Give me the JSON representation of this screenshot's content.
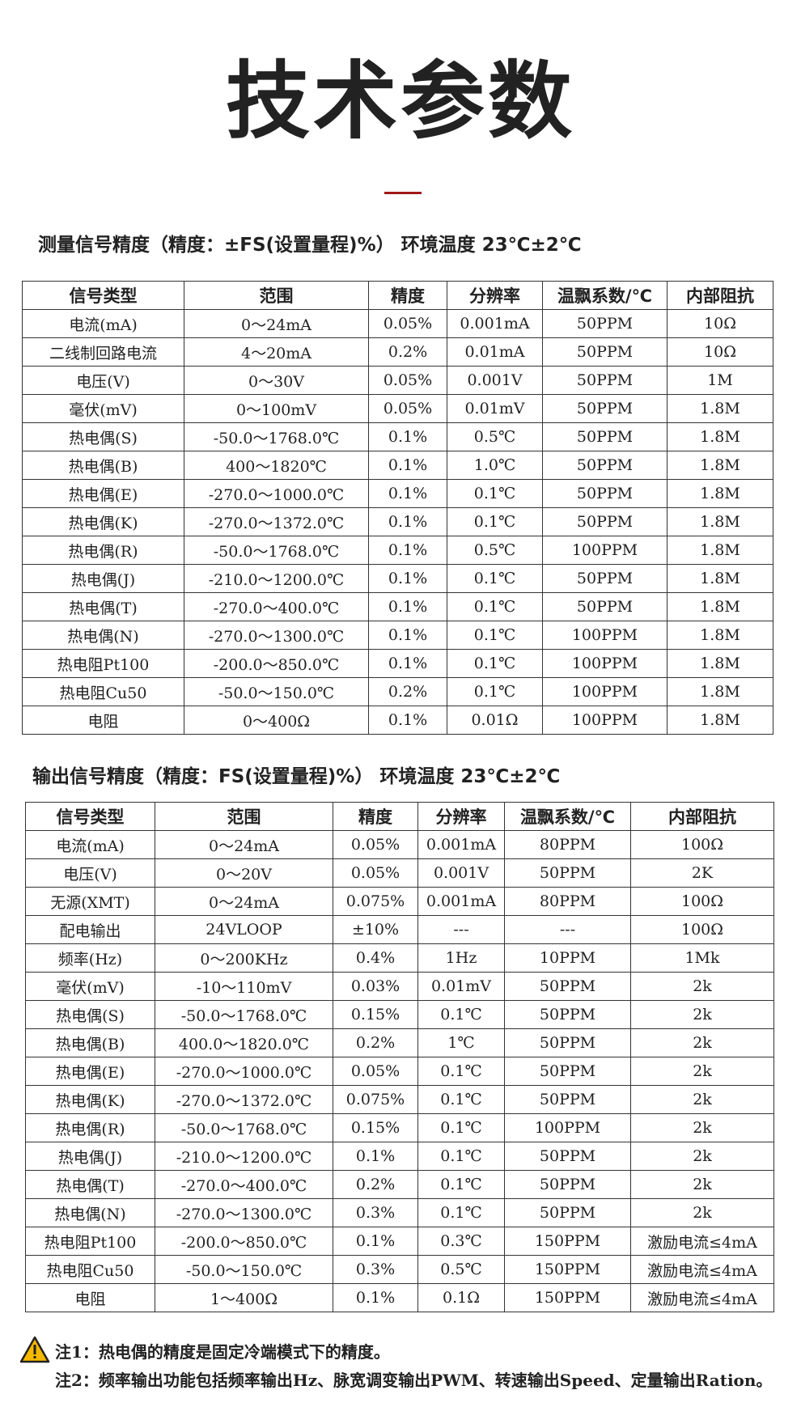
{
  "header": {
    "title": "技术参数"
  },
  "section1": {
    "heading": "测量信号精度（精度：±FS(设置量程)%） 环境温度 23℃±2℃",
    "table": {
      "headers": [
        "信号类型",
        "范围",
        "精度",
        "分辨率",
        "温飘系数/℃",
        "内部阻抗"
      ],
      "rows": [
        [
          "电流(mA)",
          "0～24mA",
          "0.05%",
          "0.001mA",
          "50PPM",
          "10Ω"
        ],
        [
          "二线制回路电流",
          "4～20mA",
          "0.2%",
          "0.01mA",
          "50PPM",
          "10Ω"
        ],
        [
          "电压(V)",
          "0～30V",
          "0.05%",
          "0.001V",
          "50PPM",
          "1M"
        ],
        [
          "毫伏(mV)",
          "0～100mV",
          "0.05%",
          "0.01mV",
          "50PPM",
          "1.8M"
        ],
        [
          "热电偶(S)",
          "-50.0～1768.0℃",
          "0.1%",
          "0.5℃",
          "50PPM",
          "1.8M"
        ],
        [
          "热电偶(B)",
          "400～1820℃",
          "0.1%",
          "1.0℃",
          "50PPM",
          "1.8M"
        ],
        [
          "热电偶(E)",
          "-270.0～1000.0℃",
          "0.1%",
          "0.1℃",
          "50PPM",
          "1.8M"
        ],
        [
          "热电偶(K)",
          "-270.0～1372.0℃",
          "0.1%",
          "0.1℃",
          "50PPM",
          "1.8M"
        ],
        [
          "热电偶(R)",
          "-50.0～1768.0℃",
          "0.1%",
          "0.5℃",
          "100PPM",
          "1.8M"
        ],
        [
          "热电偶(J)",
          "-210.0～1200.0℃",
          "0.1%",
          "0.1℃",
          "50PPM",
          "1.8M"
        ],
        [
          "热电偶(T)",
          "-270.0～400.0℃",
          "0.1%",
          "0.1℃",
          "50PPM",
          "1.8M"
        ],
        [
          "热电偶(N)",
          "-270.0～1300.0℃",
          "0.1%",
          "0.1℃",
          "100PPM",
          "1.8M"
        ],
        [
          "热电阻Pt100",
          "-200.0～850.0℃",
          "0.1%",
          "0.1℃",
          "100PPM",
          "1.8M"
        ],
        [
          "热电阻Cu50",
          "-50.0～150.0℃",
          "0.2%",
          "0.1℃",
          "100PPM",
          "1.8M"
        ],
        [
          "电阻",
          "0～400Ω",
          "0.1%",
          "0.01Ω",
          "100PPM",
          "1.8M"
        ]
      ]
    }
  },
  "section2": {
    "heading": "输出信号精度（精度：FS(设置量程)%） 环境温度 23℃±2℃",
    "table": {
      "headers": [
        "信号类型",
        "范围",
        "精度",
        "分辨率",
        "温飘系数/℃",
        "内部阻抗"
      ],
      "rows": [
        [
          "电流(mA)",
          "0～24mA",
          "0.05%",
          "0.001mA",
          "80PPM",
          "100Ω"
        ],
        [
          "电压(V)",
          "0～20V",
          "0.05%",
          "0.001V",
          "50PPM",
          "2K"
        ],
        [
          "无源(XMT)",
          "0～24mA",
          "0.075%",
          "0.001mA",
          "80PPM",
          "100Ω"
        ],
        [
          "配电输出",
          "24VLOOP",
          "±10%",
          "---",
          "---",
          "100Ω"
        ],
        [
          "频率(Hz)",
          "0～200KHz",
          "0.4%",
          "1Hz",
          "10PPM",
          "1Mk"
        ],
        [
          "毫伏(mV)",
          "-10～110mV",
          "0.03%",
          "0.01mV",
          "50PPM",
          "2k"
        ],
        [
          "热电偶(S)",
          "-50.0～1768.0℃",
          "0.15%",
          "0.1℃",
          "50PPM",
          "2k"
        ],
        [
          "热电偶(B)",
          "400.0～1820.0℃",
          "0.2%",
          "1℃",
          "50PPM",
          "2k"
        ],
        [
          "热电偶(E)",
          "-270.0～1000.0℃",
          "0.05%",
          "0.1℃",
          "50PPM",
          "2k"
        ],
        [
          "热电偶(K)",
          "-270.0～1372.0℃",
          "0.075%",
          "0.1℃",
          "50PPM",
          "2k"
        ],
        [
          "热电偶(R)",
          "-50.0～1768.0℃",
          "0.15%",
          "0.1℃",
          "100PPM",
          "2k"
        ],
        [
          "热电偶(J)",
          "-210.0～1200.0℃",
          "0.1%",
          "0.1℃",
          "50PPM",
          "2k"
        ],
        [
          "热电偶(T)",
          "-270.0～400.0℃",
          "0.2%",
          "0.1℃",
          "50PPM",
          "2k"
        ],
        [
          "热电偶(N)",
          "-270.0～1300.0℃",
          "0.3%",
          "0.1℃",
          "50PPM",
          "2k"
        ],
        [
          "热电阻Pt100",
          "-200.0～850.0℃",
          "0.1%",
          "0.3℃",
          "150PPM",
          "激励电流≤4mA"
        ],
        [
          "热电阻Cu50",
          "-50.0～150.0℃",
          "0.3%",
          "0.5℃",
          "150PPM",
          "激励电流≤4mA"
        ],
        [
          "电阻",
          "1～400Ω",
          "0.1%",
          "0.1Ω",
          "150PPM",
          "激励电流≤4mA"
        ]
      ]
    }
  },
  "notes": [
    "注1：热电偶的精度是固定冷端模式下的精度。",
    "注2：频率输出功能包括频率输出Hz、脉宽调变输出PWM、转速输出Speed、定量输出Ration。"
  ]
}
